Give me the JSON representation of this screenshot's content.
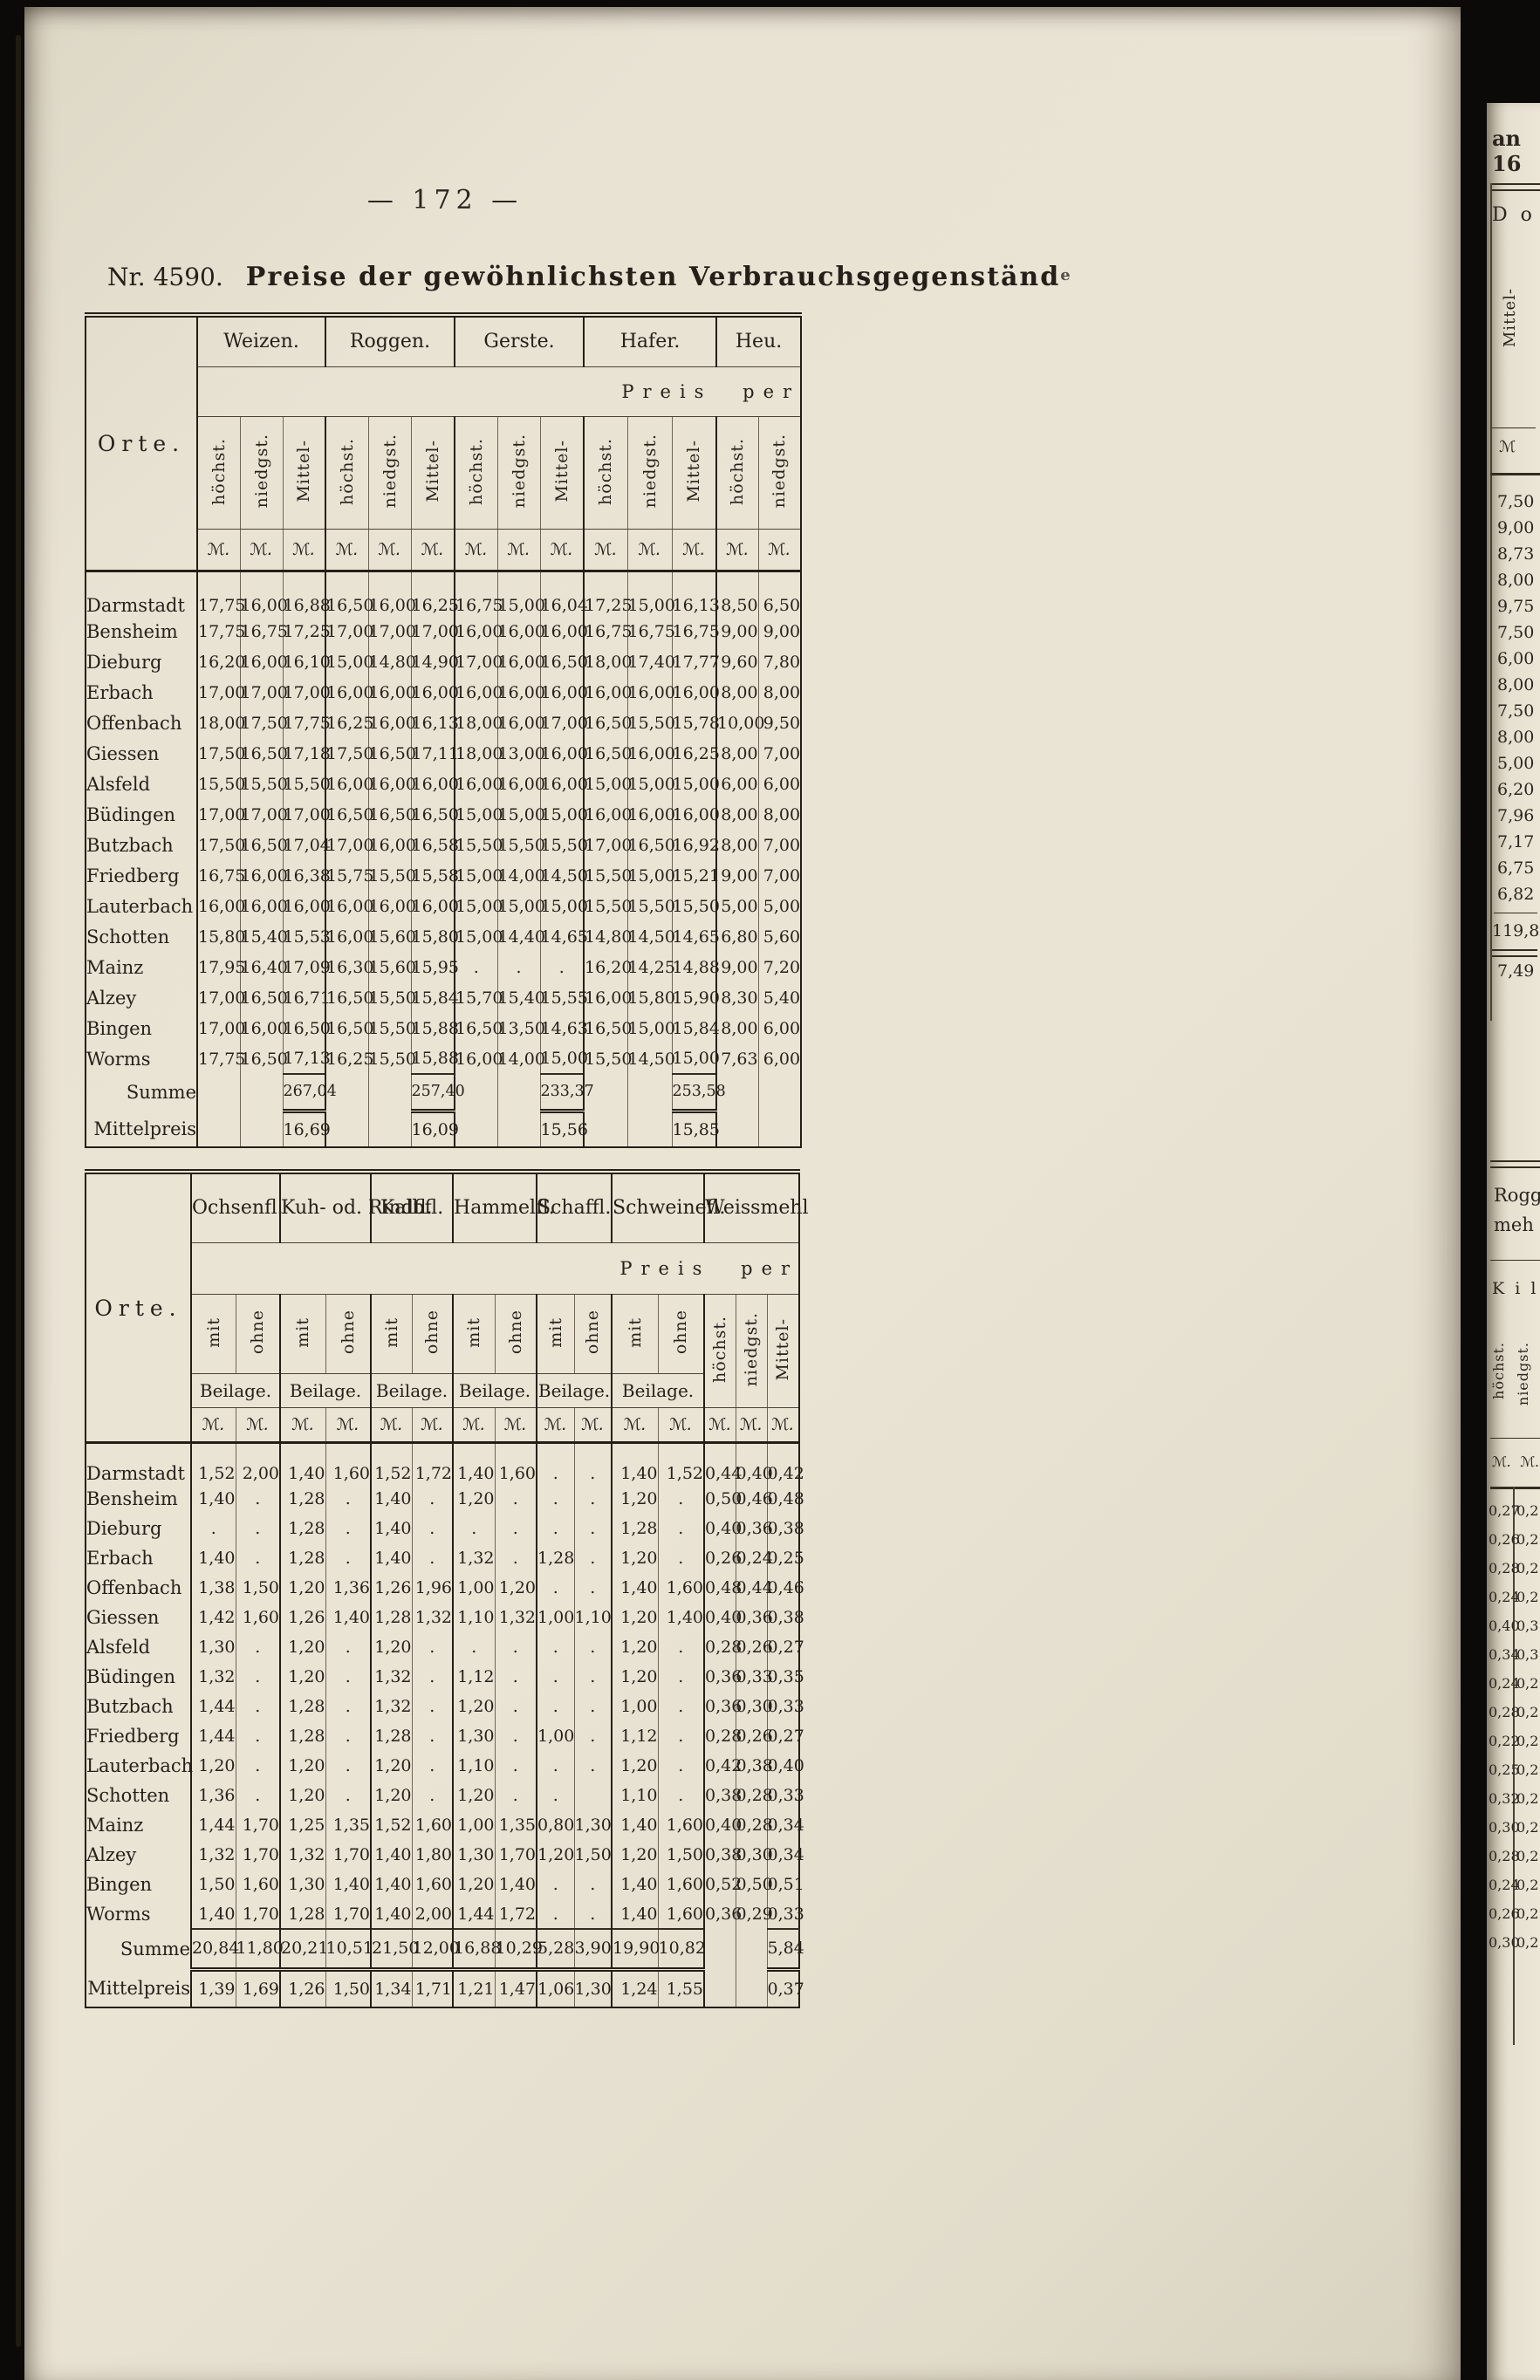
{
  "page": {
    "number": "— 172 —",
    "doc_number": "Nr. 4590.",
    "title": "Preise der gewöhnlichsten Verbrauchsgegenständ",
    "title_suffix": "e"
  },
  "table1": {
    "orte_label": "Orte.",
    "preis_per": "Preis per",
    "currency": "ℳ.",
    "groups": [
      {
        "label": "Weizen.",
        "columns": [
          "höchst.",
          "niedgst.",
          "Mittel-"
        ]
      },
      {
        "label": "Roggen.",
        "columns": [
          "höchst.",
          "niedgst.",
          "Mittel-"
        ]
      },
      {
        "label": "Gerste.",
        "columns": [
          "höchst.",
          "niedgst.",
          "Mittel-"
        ]
      },
      {
        "label": "Hafer.",
        "columns": [
          "höchst.",
          "niedgst.",
          "Mittel-"
        ]
      },
      {
        "label": "Heu.",
        "columns": [
          "höchst.",
          "niedgst."
        ]
      }
    ],
    "rows": [
      {
        "ort": "Darmstadt",
        "values": [
          "17,75",
          "16,00",
          "16,88",
          "16,50",
          "16,00",
          "16,25",
          "16,75",
          "15,00",
          "16,04",
          "17,25",
          "15,00",
          "16,13",
          "8,50",
          "6,50"
        ]
      },
      {
        "ort": "Bensheim",
        "values": [
          "17,75",
          "16,75",
          "17,25",
          "17,00",
          "17,00",
          "17,00",
          "16,00",
          "16,00",
          "16,00",
          "16,75",
          "16,75",
          "16,75",
          "9,00",
          "9,00"
        ]
      },
      {
        "ort": "Dieburg",
        "values": [
          "16,20",
          "16,00",
          "16,10",
          "15,00",
          "14,80",
          "14,90",
          "17,00",
          "16,00",
          "16,50",
          "18,00",
          "17,40",
          "17,77",
          "9,60",
          "7,80"
        ]
      },
      {
        "ort": "Erbach",
        "values": [
          "17,00",
          "17,00",
          "17,00",
          "16,00",
          "16,00",
          "16,00",
          "16,00",
          "16,00",
          "16,00",
          "16,00",
          "16,00",
          "16,00",
          "8,00",
          "8,00"
        ]
      },
      {
        "ort": "Offenbach",
        "values": [
          "18,00",
          "17,50",
          "17,75",
          "16,25",
          "16,00",
          "16,13",
          "18,00",
          "16,00",
          "17,00",
          "16,50",
          "15,50",
          "15,78",
          "10,00",
          "9,50"
        ]
      },
      {
        "ort": "Giessen",
        "values": [
          "17,50",
          "16,50",
          "17,18",
          "17,50",
          "16,50",
          "17,11",
          "18,00",
          "13,00",
          "16,00",
          "16,50",
          "16,00",
          "16,25",
          "8,00",
          "7,00"
        ]
      },
      {
        "ort": "Alsfeld",
        "values": [
          "15,50",
          "15,50",
          "15,50",
          "16,00",
          "16,00",
          "16,00",
          "16,00",
          "16,00",
          "16,00",
          "15,00",
          "15,00",
          "15,00",
          "6,00",
          "6,00"
        ]
      },
      {
        "ort": "Büdingen",
        "values": [
          "17,00",
          "17,00",
          "17,00",
          "16,50",
          "16,50",
          "16,50",
          "15,00",
          "15,00",
          "15,00",
          "16,00",
          "16,00",
          "16,00",
          "8,00",
          "8,00"
        ]
      },
      {
        "ort": "Butzbach",
        "values": [
          "17,50",
          "16,50",
          "17,04",
          "17,00",
          "16,00",
          "16,58",
          "15,50",
          "15,50",
          "15,50",
          "17,00",
          "16,50",
          "16,92",
          "8,00",
          "7,00"
        ]
      },
      {
        "ort": "Friedberg",
        "values": [
          "16,75",
          "16,00",
          "16,38",
          "15,75",
          "15,50",
          "15,58",
          "15,00",
          "14,00",
          "14,50",
          "15,50",
          "15,00",
          "15,21",
          "9,00",
          "7,00"
        ]
      },
      {
        "ort": "Lauterbach",
        "values": [
          "16,00",
          "16,00",
          "16,00",
          "16,00",
          "16,00",
          "16,00",
          "15,00",
          "15,00",
          "15,00",
          "15,50",
          "15,50",
          "15,50",
          "5,00",
          "5,00"
        ]
      },
      {
        "ort": "Schotten",
        "values": [
          "15,80",
          "15,40",
          "15,53",
          "16,00",
          "15,60",
          "15,80",
          "15,00",
          "14,40",
          "14,65",
          "14,80",
          "14,50",
          "14,65",
          "6,80",
          "5,60"
        ]
      },
      {
        "ort": "Mainz",
        "values": [
          "17,95",
          "16,40",
          "17,09",
          "16,30",
          "15,60",
          "15,95",
          ".",
          ".",
          ".",
          "16,20",
          "14,25",
          "14,88",
          "9,00",
          "7,20"
        ]
      },
      {
        "ort": "Alzey",
        "values": [
          "17,00",
          "16,50",
          "16,71",
          "16,50",
          "15,50",
          "15,84",
          "15,70",
          "15,40",
          "15,55",
          "16,00",
          "15,80",
          "15,90",
          "8,30",
          "5,40"
        ]
      },
      {
        "ort": "Bingen",
        "values": [
          "17,00",
          "16,00",
          "16,50",
          "16,50",
          "15,50",
          "15,88",
          "16,50",
          "13,50",
          "14,63",
          "16,50",
          "15,00",
          "15,84",
          "8,00",
          "6,00"
        ]
      },
      {
        "ort": "Worms",
        "values": [
          "17,75",
          "16,50",
          "17,13",
          "16,25",
          "15,50",
          "15,88",
          "16,00",
          "14,00",
          "15,00",
          "15,50",
          "14,50",
          "15,00",
          "7,63",
          "6,00"
        ]
      }
    ],
    "summe_label": "Summe",
    "summe_values": [
      "",
      "",
      "267,04",
      "",
      "",
      "257,40",
      "",
      "",
      "233,37",
      "",
      "",
      "253,58",
      "",
      ""
    ],
    "mittelpreis_label": "Mittelpreis",
    "mittelpreis_values": [
      "",
      "",
      "16,69",
      "",
      "",
      "16,09",
      "",
      "",
      "15,56",
      "",
      "",
      "15,85",
      "",
      ""
    ]
  },
  "table2": {
    "orte_label": "Orte.",
    "preis_per": "Preis per",
    "currency": "ℳ.",
    "beilage_label": "Beilage.",
    "groups": [
      {
        "label": "Ochsenfl.",
        "columns": [
          "mit",
          "ohne"
        ],
        "beilage": true
      },
      {
        "label": "Kuh- od.\nRindfl.",
        "columns": [
          "mit",
          "ohne"
        ],
        "beilage": true
      },
      {
        "label": "Kalbfl.",
        "columns": [
          "mit",
          "ohne"
        ],
        "beilage": true
      },
      {
        "label": "Hammelfl.",
        "columns": [
          "mit",
          "ohne"
        ],
        "beilage": true
      },
      {
        "label": "Schaffl.",
        "columns": [
          "mit",
          "ohne"
        ],
        "beilage": true
      },
      {
        "label": "Schweinefl.",
        "columns": [
          "mit",
          "ohne"
        ],
        "beilage": true
      },
      {
        "label": "Weissmehl",
        "columns": [
          "höchst.",
          "niedgst.",
          "Mittel-"
        ],
        "beilage": false
      }
    ],
    "rows": [
      {
        "ort": "Darmstadt",
        "values": [
          "1,52",
          "2,00",
          "1,40",
          "1,60",
          "1,52",
          "1,72",
          "1,40",
          "1,60",
          ".",
          ".",
          "1,40",
          "1,52",
          "0,44",
          "0,40",
          "0,42"
        ]
      },
      {
        "ort": "Bensheim",
        "values": [
          "1,40",
          ".",
          "1,28",
          ".",
          "1,40",
          ".",
          "1,20",
          ".",
          ".",
          ".",
          "1,20",
          ".",
          "0,50",
          "0,46",
          "0,48"
        ]
      },
      {
        "ort": "Dieburg",
        "values": [
          ".",
          ".",
          "1,28",
          ".",
          "1,40",
          ".",
          ".",
          ".",
          ".",
          ".",
          "1,28",
          ".",
          "0,40",
          "0,36",
          "0,38"
        ]
      },
      {
        "ort": "Erbach",
        "values": [
          "1,40",
          ".",
          "1,28",
          ".",
          "1,40",
          ".",
          "1,32",
          ".",
          "1,28",
          ".",
          "1,20",
          ".",
          "0,26",
          "0,24",
          "0,25"
        ]
      },
      {
        "ort": "Offenbach",
        "values": [
          "1,38",
          "1,50",
          "1,20",
          "1,36",
          "1,26",
          "1,96",
          "1,00",
          "1,20",
          ".",
          ".",
          "1,40",
          "1,60",
          "0,48",
          "0,44",
          "0,46"
        ]
      },
      {
        "ort": "Giessen",
        "values": [
          "1,42",
          "1,60",
          "1,26",
          "1,40",
          "1,28",
          "1,32",
          "1,10",
          "1,32",
          "1,00",
          "1,10",
          "1,20",
          "1,40",
          "0,40",
          "0,36",
          "0,38"
        ]
      },
      {
        "ort": "Alsfeld",
        "values": [
          "1,30",
          ".",
          "1,20",
          ".",
          "1,20",
          ".",
          ".",
          ".",
          ".",
          ".",
          "1,20",
          ".",
          "0,28",
          "0,26",
          "0,27"
        ]
      },
      {
        "ort": "Büdingen",
        "values": [
          "1,32",
          ".",
          "1,20",
          ".",
          "1,32",
          ".",
          "1,12",
          ".",
          ".",
          ".",
          "1,20",
          ".",
          "0,36",
          "0,33",
          "0,35"
        ]
      },
      {
        "ort": "Butzbach",
        "values": [
          "1,44",
          ".",
          "1,28",
          ".",
          "1,32",
          ".",
          "1,20",
          ".",
          ".",
          ".",
          "1,00",
          ".",
          "0,36",
          "0,30",
          "0,33"
        ]
      },
      {
        "ort": "Friedberg",
        "values": [
          "1,44",
          ".",
          "1,28",
          ".",
          "1,28",
          ".",
          "1,30",
          ".",
          "1,00",
          ".",
          "1,12",
          ".",
          "0,28",
          "0,26",
          "0,27"
        ]
      },
      {
        "ort": "Lauterbach",
        "values": [
          "1,20",
          ".",
          "1,20",
          ".",
          "1,20",
          ".",
          "1,10",
          ".",
          ".",
          ".",
          "1,20",
          ".",
          "0,42",
          "0,38",
          "0,40"
        ]
      },
      {
        "ort": "Schotten",
        "values": [
          "1,36",
          ".",
          "1,20",
          ".",
          "1,20",
          ".",
          "1,20",
          ".",
          ".",
          "",
          "1,10",
          ".",
          "0,38",
          "0,28",
          "0,33"
        ]
      },
      {
        "ort": "Mainz",
        "values": [
          "1,44",
          "1,70",
          "1,25",
          "1,35",
          "1,52",
          "1,60",
          "1,00",
          "1,35",
          "0,80",
          "1,30",
          "1,40",
          "1,60",
          "0,40",
          "0,28",
          "0,34"
        ]
      },
      {
        "ort": "Alzey",
        "values": [
          "1,32",
          "1,70",
          "1,32",
          "1,70",
          "1,40",
          "1,80",
          "1,30",
          "1,70",
          "1,20",
          "1,50",
          "1,20",
          "1,50",
          "0,38",
          "0,30",
          "0,34"
        ]
      },
      {
        "ort": "Bingen",
        "values": [
          "1,50",
          "1,60",
          "1,30",
          "1,40",
          "1,40",
          "1,60",
          "1,20",
          "1,40",
          ".",
          ".",
          "1,40",
          "1,60",
          "0,52",
          "0,50",
          "0,51"
        ]
      },
      {
        "ort": "Worms",
        "values": [
          "1,40",
          "1,70",
          "1,28",
          "1,70",
          "1,40",
          "2,00",
          "1,44",
          "1,72",
          ".",
          ".",
          "1,40",
          "1,60",
          "0,36",
          "0,29",
          "0,33"
        ]
      }
    ],
    "summe_label": "Summe",
    "summe_values": [
      "20,84",
      "11,80",
      "20,21",
      "10,51",
      "21,50",
      "12,00",
      "16,88",
      "10,29",
      "5,28",
      "3,90",
      "19,90",
      "10,82",
      "",
      "",
      "5,84"
    ],
    "mittelpreis_label": "Mittelpreis",
    "mittelpreis_values": [
      "1,39",
      "1,69",
      "1,26",
      "1,50",
      "1,34",
      "1,71",
      "1,21",
      "1,47",
      "1,06",
      "1,30",
      "1,24",
      "1,55",
      "",
      "",
      "0,37"
    ]
  },
  "right_page": {
    "top_text": "an 16",
    "header_fragment": "D o",
    "rotated_label": "Mittel-",
    "currency": "ℳ",
    "values": [
      "7,50",
      "9,00",
      "8,73",
      "8,00",
      "9,75",
      "7,50",
      "6,00",
      "8,00",
      "7,50",
      "8,00",
      "5,00",
      "6,20",
      "7,96",
      "7,17",
      "6,75",
      "6,82"
    ],
    "sum": "119,88",
    "mittel": "7,49",
    "section2": {
      "line1": "Rogg",
      "line2": "meh",
      "line3": "K i l",
      "col_headers": [
        "höchst.",
        "niedgst."
      ],
      "currency": "ℳ.  ℳ.",
      "pairs": [
        [
          "0,27",
          "0,2"
        ],
        [
          "0,26",
          "0,2"
        ],
        [
          "0,28",
          "0,2"
        ],
        [
          "0,24",
          "0,2"
        ],
        [
          "0,40",
          "0,3"
        ],
        [
          "0,34",
          "0,3"
        ],
        [
          "0,24",
          "0,2"
        ],
        [
          "0,28",
          "0,2"
        ],
        [
          "0,22",
          "0,2"
        ],
        [
          "0,25",
          "0,2"
        ],
        [
          "0,32",
          "0,2"
        ],
        [
          "0,30",
          "0,2"
        ],
        [
          "0,28",
          "0,2"
        ],
        [
          "0,24",
          "0,2"
        ],
        [
          "0,26",
          "0,2"
        ],
        [
          "0,30",
          "0,2"
        ]
      ]
    }
  }
}
